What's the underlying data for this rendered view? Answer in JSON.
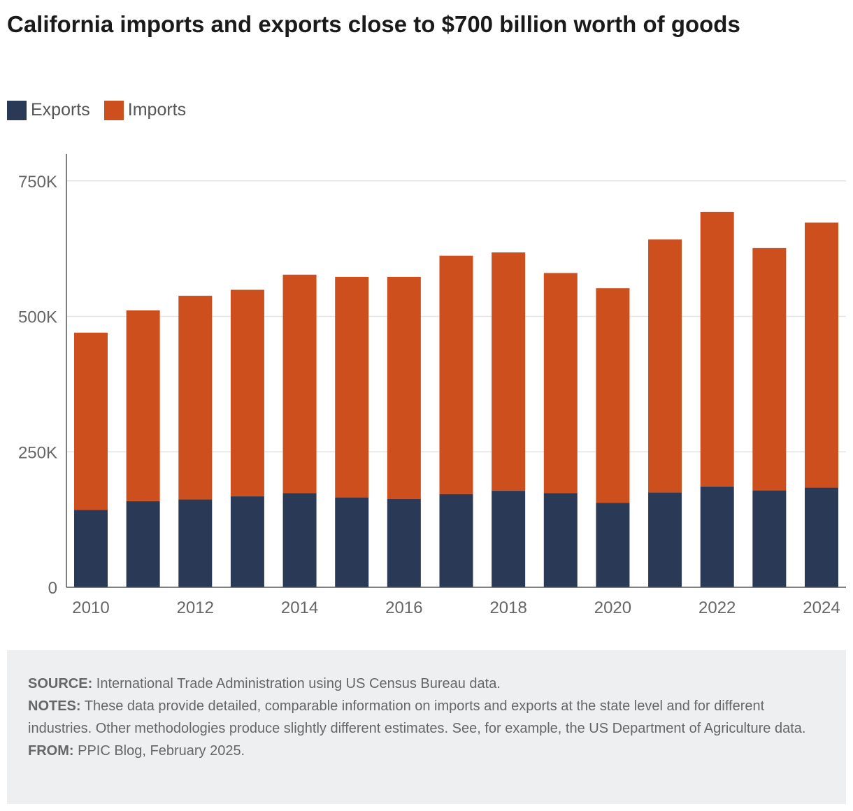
{
  "title": "California imports and exports close to $700 billion worth of goods",
  "legend": {
    "items": [
      {
        "label": "Exports",
        "color": "#2a3a56"
      },
      {
        "label": "Imports",
        "color": "#cc4f1d"
      }
    ]
  },
  "chart_data": {
    "type": "bar",
    "stacked": true,
    "title": "California imports and exports close to $700 billion worth of goods",
    "xlabel": "",
    "ylabel": "",
    "categories": [
      "2010",
      "2011",
      "2012",
      "2013",
      "2014",
      "2015",
      "2016",
      "2017",
      "2018",
      "2019",
      "2020",
      "2021",
      "2022",
      "2023",
      "2024"
    ],
    "series": [
      {
        "name": "Exports",
        "color": "#2a3a56",
        "values": [
          143000,
          159000,
          162000,
          168000,
          174000,
          166000,
          163000,
          172000,
          178000,
          174000,
          156000,
          175000,
          186000,
          179000,
          184000
        ]
      },
      {
        "name": "Imports",
        "color": "#cc4f1d",
        "values": [
          327000,
          352000,
          376000,
          381000,
          403000,
          407000,
          410000,
          440000,
          440000,
          406000,
          396000,
          467000,
          507000,
          447000,
          489000
        ]
      }
    ],
    "ylim": [
      0,
      800000
    ],
    "yticks": [
      0,
      250000,
      500000,
      750000
    ],
    "ytick_labels": [
      "0",
      "250K",
      "500K",
      "750K"
    ],
    "xtick_labels": [
      "2010",
      "2012",
      "2014",
      "2016",
      "2018",
      "2020",
      "2022",
      "2024"
    ],
    "grid": true,
    "legend_position": "top-left"
  },
  "notes": {
    "source_label": "SOURCE:",
    "source_text": " International Trade Administration using US Census Bureau data.",
    "notes_label": "NOTES:",
    "notes_text": " These data provide detailed, comparable information on imports and exports at the state level and for different industries. Other methodologies produce slightly different estimates. See, for example, the US Department of Agriculture data.",
    "from_label": "FROM:",
    "from_text": " PPIC Blog, February 2025."
  }
}
